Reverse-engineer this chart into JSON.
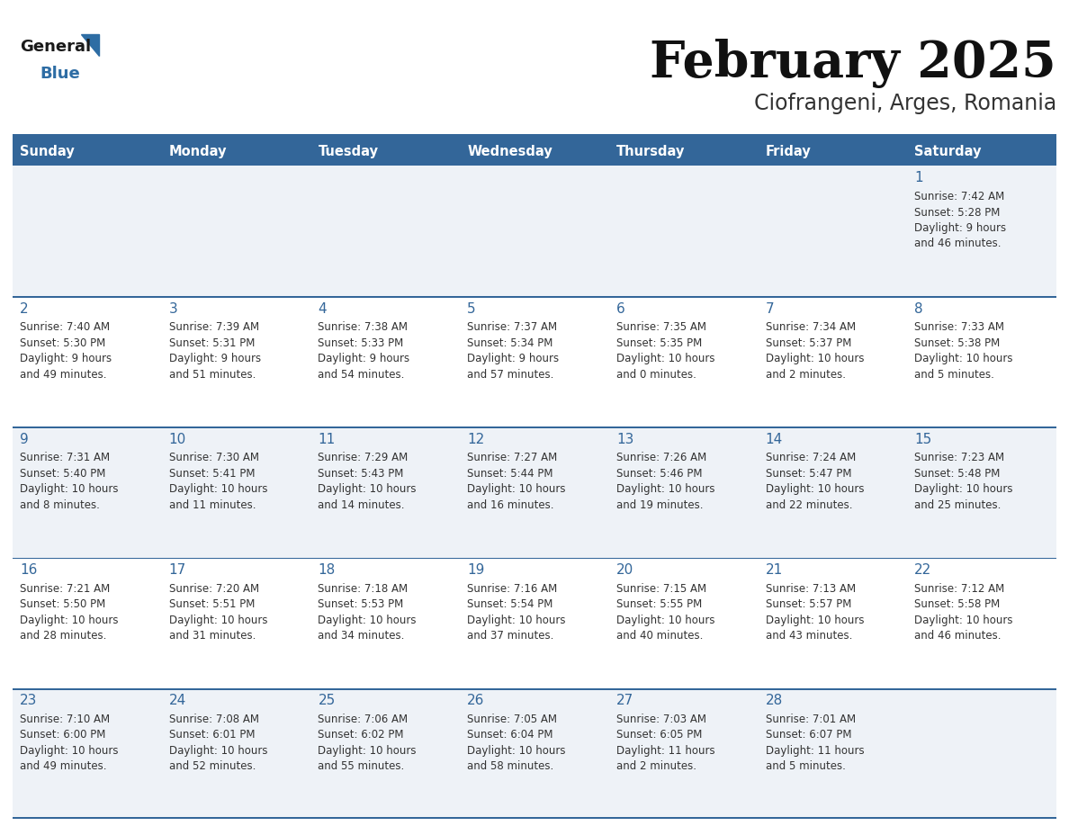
{
  "title": "February 2025",
  "subtitle": "Ciofrangeni, Arges, Romania",
  "header_color": "#336699",
  "header_text_color": "#FFFFFF",
  "cell_bg_even": "#EEF2F7",
  "cell_bg_odd": "#FFFFFF",
  "row_border_color": "#336699",
  "text_color": "#333333",
  "day_number_color": "#336699",
  "logo_color_general": "#1a1a1a",
  "logo_color_blue": "#2E6DA4",
  "day_headers": [
    "Sunday",
    "Monday",
    "Tuesday",
    "Wednesday",
    "Thursday",
    "Friday",
    "Saturday"
  ],
  "weeks": [
    [
      {
        "day": "",
        "info": ""
      },
      {
        "day": "",
        "info": ""
      },
      {
        "day": "",
        "info": ""
      },
      {
        "day": "",
        "info": ""
      },
      {
        "day": "",
        "info": ""
      },
      {
        "day": "",
        "info": ""
      },
      {
        "day": "1",
        "info": "Sunrise: 7:42 AM\nSunset: 5:28 PM\nDaylight: 9 hours\nand 46 minutes."
      }
    ],
    [
      {
        "day": "2",
        "info": "Sunrise: 7:40 AM\nSunset: 5:30 PM\nDaylight: 9 hours\nand 49 minutes."
      },
      {
        "day": "3",
        "info": "Sunrise: 7:39 AM\nSunset: 5:31 PM\nDaylight: 9 hours\nand 51 minutes."
      },
      {
        "day": "4",
        "info": "Sunrise: 7:38 AM\nSunset: 5:33 PM\nDaylight: 9 hours\nand 54 minutes."
      },
      {
        "day": "5",
        "info": "Sunrise: 7:37 AM\nSunset: 5:34 PM\nDaylight: 9 hours\nand 57 minutes."
      },
      {
        "day": "6",
        "info": "Sunrise: 7:35 AM\nSunset: 5:35 PM\nDaylight: 10 hours\nand 0 minutes."
      },
      {
        "day": "7",
        "info": "Sunrise: 7:34 AM\nSunset: 5:37 PM\nDaylight: 10 hours\nand 2 minutes."
      },
      {
        "day": "8",
        "info": "Sunrise: 7:33 AM\nSunset: 5:38 PM\nDaylight: 10 hours\nand 5 minutes."
      }
    ],
    [
      {
        "day": "9",
        "info": "Sunrise: 7:31 AM\nSunset: 5:40 PM\nDaylight: 10 hours\nand 8 minutes."
      },
      {
        "day": "10",
        "info": "Sunrise: 7:30 AM\nSunset: 5:41 PM\nDaylight: 10 hours\nand 11 minutes."
      },
      {
        "day": "11",
        "info": "Sunrise: 7:29 AM\nSunset: 5:43 PM\nDaylight: 10 hours\nand 14 minutes."
      },
      {
        "day": "12",
        "info": "Sunrise: 7:27 AM\nSunset: 5:44 PM\nDaylight: 10 hours\nand 16 minutes."
      },
      {
        "day": "13",
        "info": "Sunrise: 7:26 AM\nSunset: 5:46 PM\nDaylight: 10 hours\nand 19 minutes."
      },
      {
        "day": "14",
        "info": "Sunrise: 7:24 AM\nSunset: 5:47 PM\nDaylight: 10 hours\nand 22 minutes."
      },
      {
        "day": "15",
        "info": "Sunrise: 7:23 AM\nSunset: 5:48 PM\nDaylight: 10 hours\nand 25 minutes."
      }
    ],
    [
      {
        "day": "16",
        "info": "Sunrise: 7:21 AM\nSunset: 5:50 PM\nDaylight: 10 hours\nand 28 minutes."
      },
      {
        "day": "17",
        "info": "Sunrise: 7:20 AM\nSunset: 5:51 PM\nDaylight: 10 hours\nand 31 minutes."
      },
      {
        "day": "18",
        "info": "Sunrise: 7:18 AM\nSunset: 5:53 PM\nDaylight: 10 hours\nand 34 minutes."
      },
      {
        "day": "19",
        "info": "Sunrise: 7:16 AM\nSunset: 5:54 PM\nDaylight: 10 hours\nand 37 minutes."
      },
      {
        "day": "20",
        "info": "Sunrise: 7:15 AM\nSunset: 5:55 PM\nDaylight: 10 hours\nand 40 minutes."
      },
      {
        "day": "21",
        "info": "Sunrise: 7:13 AM\nSunset: 5:57 PM\nDaylight: 10 hours\nand 43 minutes."
      },
      {
        "day": "22",
        "info": "Sunrise: 7:12 AM\nSunset: 5:58 PM\nDaylight: 10 hours\nand 46 minutes."
      }
    ],
    [
      {
        "day": "23",
        "info": "Sunrise: 7:10 AM\nSunset: 6:00 PM\nDaylight: 10 hours\nand 49 minutes."
      },
      {
        "day": "24",
        "info": "Sunrise: 7:08 AM\nSunset: 6:01 PM\nDaylight: 10 hours\nand 52 minutes."
      },
      {
        "day": "25",
        "info": "Sunrise: 7:06 AM\nSunset: 6:02 PM\nDaylight: 10 hours\nand 55 minutes."
      },
      {
        "day": "26",
        "info": "Sunrise: 7:05 AM\nSunset: 6:04 PM\nDaylight: 10 hours\nand 58 minutes."
      },
      {
        "day": "27",
        "info": "Sunrise: 7:03 AM\nSunset: 6:05 PM\nDaylight: 11 hours\nand 2 minutes."
      },
      {
        "day": "28",
        "info": "Sunrise: 7:01 AM\nSunset: 6:07 PM\nDaylight: 11 hours\nand 5 minutes."
      },
      {
        "day": "",
        "info": ""
      }
    ]
  ]
}
